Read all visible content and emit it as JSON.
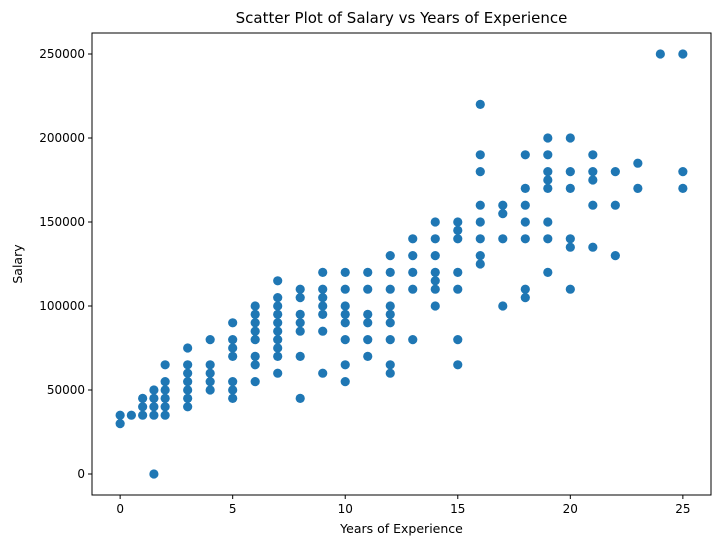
{
  "chart_data": {
    "type": "scatter",
    "title": "Scatter Plot of Salary vs Years of Experience",
    "xlabel": "Years of Experience",
    "ylabel": "Salary",
    "xlim": [
      -1.25,
      26.25
    ],
    "ylim": [
      -12500,
      262500
    ],
    "xticks": [
      0,
      5,
      10,
      15,
      20,
      25
    ],
    "yticks": [
      0,
      50000,
      100000,
      150000,
      200000,
      250000
    ],
    "grid": false,
    "marker_color": "#1f77b4",
    "points": [
      [
        0,
        35000
      ],
      [
        0,
        30000
      ],
      [
        0.5,
        35000
      ],
      [
        1,
        45000
      ],
      [
        1,
        40000
      ],
      [
        1,
        35000
      ],
      [
        1.5,
        50000
      ],
      [
        1.5,
        45000
      ],
      [
        1.5,
        40000
      ],
      [
        1.5,
        35000
      ],
      [
        1.5,
        0
      ],
      [
        2,
        65000
      ],
      [
        2,
        55000
      ],
      [
        2,
        50000
      ],
      [
        2,
        45000
      ],
      [
        2,
        40000
      ],
      [
        2,
        35000
      ],
      [
        3,
        75000
      ],
      [
        3,
        65000
      ],
      [
        3,
        60000
      ],
      [
        3,
        55000
      ],
      [
        3,
        50000
      ],
      [
        3,
        45000
      ],
      [
        3,
        40000
      ],
      [
        4,
        80000
      ],
      [
        4,
        65000
      ],
      [
        4,
        60000
      ],
      [
        4,
        55000
      ],
      [
        4,
        50000
      ],
      [
        5,
        90000
      ],
      [
        5,
        80000
      ],
      [
        5,
        75000
      ],
      [
        5,
        70000
      ],
      [
        5,
        55000
      ],
      [
        5,
        50000
      ],
      [
        5,
        45000
      ],
      [
        6,
        100000
      ],
      [
        6,
        95000
      ],
      [
        6,
        90000
      ],
      [
        6,
        85000
      ],
      [
        6,
        80000
      ],
      [
        6,
        70000
      ],
      [
        6,
        65000
      ],
      [
        6,
        55000
      ],
      [
        7,
        115000
      ],
      [
        7,
        105000
      ],
      [
        7,
        100000
      ],
      [
        7,
        95000
      ],
      [
        7,
        90000
      ],
      [
        7,
        85000
      ],
      [
        7,
        80000
      ],
      [
        7,
        75000
      ],
      [
        7,
        70000
      ],
      [
        7,
        60000
      ],
      [
        8,
        110000
      ],
      [
        8,
        105000
      ],
      [
        8,
        95000
      ],
      [
        8,
        90000
      ],
      [
        8,
        85000
      ],
      [
        8,
        70000
      ],
      [
        8,
        45000
      ],
      [
        9,
        120000
      ],
      [
        9,
        110000
      ],
      [
        9,
        105000
      ],
      [
        9,
        100000
      ],
      [
        9,
        95000
      ],
      [
        9,
        85000
      ],
      [
        9,
        60000
      ],
      [
        10,
        120000
      ],
      [
        10,
        110000
      ],
      [
        10,
        100000
      ],
      [
        10,
        95000
      ],
      [
        10,
        90000
      ],
      [
        10,
        80000
      ],
      [
        10,
        65000
      ],
      [
        10,
        55000
      ],
      [
        11,
        120000
      ],
      [
        11,
        110000
      ],
      [
        11,
        95000
      ],
      [
        11,
        90000
      ],
      [
        11,
        80000
      ],
      [
        11,
        70000
      ],
      [
        12,
        130000
      ],
      [
        12,
        120000
      ],
      [
        12,
        110000
      ],
      [
        12,
        100000
      ],
      [
        12,
        95000
      ],
      [
        12,
        90000
      ],
      [
        12,
        80000
      ],
      [
        12,
        65000
      ],
      [
        12,
        60000
      ],
      [
        13,
        140000
      ],
      [
        13,
        130000
      ],
      [
        13,
        120000
      ],
      [
        13,
        110000
      ],
      [
        13,
        80000
      ],
      [
        14,
        150000
      ],
      [
        14,
        140000
      ],
      [
        14,
        130000
      ],
      [
        14,
        120000
      ],
      [
        14,
        115000
      ],
      [
        14,
        110000
      ],
      [
        14,
        100000
      ],
      [
        15,
        150000
      ],
      [
        15,
        145000
      ],
      [
        15,
        140000
      ],
      [
        15,
        120000
      ],
      [
        15,
        110000
      ],
      [
        15,
        80000
      ],
      [
        15,
        65000
      ],
      [
        16,
        220000
      ],
      [
        16,
        190000
      ],
      [
        16,
        180000
      ],
      [
        16,
        160000
      ],
      [
        16,
        150000
      ],
      [
        16,
        140000
      ],
      [
        16,
        130000
      ],
      [
        16,
        125000
      ],
      [
        17,
        160000
      ],
      [
        17,
        155000
      ],
      [
        17,
        140000
      ],
      [
        17,
        100000
      ],
      [
        18,
        190000
      ],
      [
        18,
        170000
      ],
      [
        18,
        160000
      ],
      [
        18,
        150000
      ],
      [
        18,
        140000
      ],
      [
        18,
        110000
      ],
      [
        18,
        105000
      ],
      [
        19,
        200000
      ],
      [
        19,
        190000
      ],
      [
        19,
        180000
      ],
      [
        19,
        175000
      ],
      [
        19,
        170000
      ],
      [
        19,
        150000
      ],
      [
        19,
        140000
      ],
      [
        19,
        120000
      ],
      [
        20,
        200000
      ],
      [
        20,
        180000
      ],
      [
        20,
        170000
      ],
      [
        20,
        140000
      ],
      [
        20,
        135000
      ],
      [
        20,
        110000
      ],
      [
        21,
        190000
      ],
      [
        21,
        180000
      ],
      [
        21,
        175000
      ],
      [
        21,
        160000
      ],
      [
        21,
        135000
      ],
      [
        22,
        180000
      ],
      [
        22,
        160000
      ],
      [
        22,
        130000
      ],
      [
        23,
        185000
      ],
      [
        23,
        170000
      ],
      [
        24,
        250000
      ],
      [
        25,
        250000
      ],
      [
        25,
        180000
      ],
      [
        25,
        170000
      ]
    ]
  }
}
